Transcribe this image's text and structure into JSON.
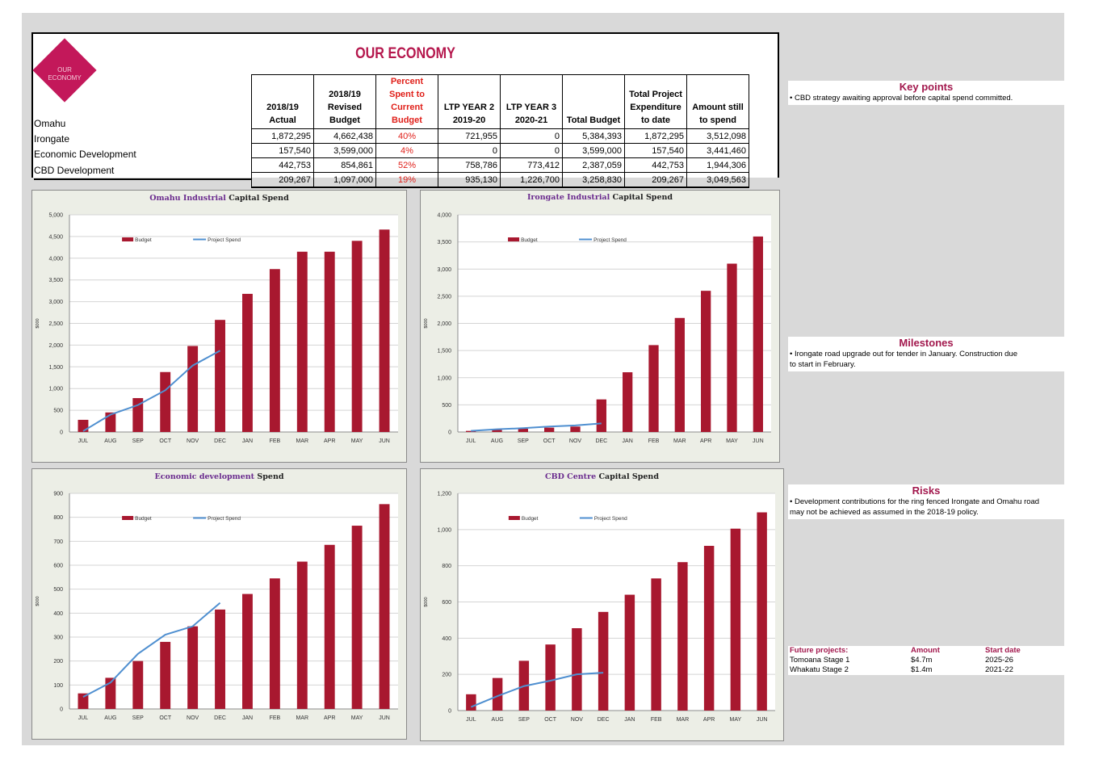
{
  "brand": {
    "logo_line1": "OUR",
    "logo_line2": "ECONOMY",
    "color": "#c3185a"
  },
  "header": {
    "title": "OUR ECONOMY"
  },
  "table": {
    "columns": [
      "2018/19 Actual",
      "2018/19 Revised Budget",
      "Percent Spent to Current Budget",
      "LTP YEAR 2 2019-20",
      "LTP YEAR 3 2020-21",
      "Total Budget",
      "Total Project Expenditure to date",
      "Amount still to spend"
    ],
    "rows": [
      {
        "label": "Omahu",
        "cells": [
          "1,872,295",
          "4,662,438",
          "40%",
          "721,955",
          "0",
          "5,384,393",
          "1,872,295",
          "3,512,098"
        ]
      },
      {
        "label": "Irongate",
        "cells": [
          "157,540",
          "3,599,000",
          "4%",
          "0",
          "0",
          "3,599,000",
          "157,540",
          "3,441,460"
        ]
      },
      {
        "label": "Economic Development",
        "cells": [
          "442,753",
          "854,861",
          "52%",
          "758,786",
          "773,412",
          "2,387,059",
          "442,753",
          "1,944,306"
        ]
      },
      {
        "label": "CBD Development",
        "cells": [
          "209,267",
          "1,097,000",
          "19%",
          "935,130",
          "1,226,700",
          "3,258,830",
          "209,267",
          "3,049,563"
        ]
      }
    ]
  },
  "colors": {
    "budget": "#a8182f",
    "spend": "#4f8fd0",
    "accent": "#a2184d",
    "percent": "#e0201a"
  },
  "chart_data": [
    {
      "type": "bar",
      "title_highlight": "Omahu Industrial",
      "title_rest": "Capital Spend",
      "ylabel": "$000",
      "ylim": [
        0,
        5000
      ],
      "ystep": 500,
      "categories": [
        "JUL",
        "AUG",
        "SEP",
        "OCT",
        "NOV",
        "DEC",
        "JAN",
        "FEB",
        "MAR",
        "APR",
        "MAY",
        "JUN"
      ],
      "series": [
        {
          "name": "Budget",
          "type": "bar",
          "values": [
            280,
            450,
            780,
            1380,
            1980,
            2580,
            3180,
            3750,
            4150,
            4150,
            4400,
            4660
          ]
        },
        {
          "name": "Project Spend",
          "type": "line",
          "values": [
            20,
            400,
            620,
            960,
            1530,
            1872,
            null,
            null,
            null,
            null,
            null,
            null
          ]
        }
      ],
      "grid": true,
      "legend": "top-left"
    },
    {
      "type": "bar",
      "title_highlight": "Irongate Industrial",
      "title_rest": "Capital Spend",
      "ylabel": "$000",
      "ylim": [
        0,
        4000
      ],
      "ystep": 500,
      "categories": [
        "JUL",
        "AUG",
        "SEP",
        "OCT",
        "NOV",
        "DEC",
        "JAN",
        "FEB",
        "MAR",
        "APR",
        "MAY",
        "JUN"
      ],
      "series": [
        {
          "name": "Budget",
          "type": "bar",
          "values": [
            20,
            40,
            60,
            80,
            100,
            600,
            1100,
            1600,
            2100,
            2600,
            3100,
            3600
          ]
        },
        {
          "name": "Project Spend",
          "type": "line",
          "values": [
            20,
            50,
            70,
            100,
            120,
            158,
            null,
            null,
            null,
            null,
            null,
            null
          ]
        }
      ],
      "grid": true,
      "legend": "top-left"
    },
    {
      "type": "bar",
      "title_highlight": "Economic development",
      "title_rest": "Spend",
      "ylabel": "$000",
      "ylim": [
        0,
        900
      ],
      "ystep": 100,
      "categories": [
        "JUL",
        "AUG",
        "SEP",
        "OCT",
        "NOV",
        "DEC",
        "JAN",
        "FEB",
        "MAR",
        "APR",
        "MAY",
        "JUN"
      ],
      "series": [
        {
          "name": "Budget",
          "type": "bar",
          "values": [
            65,
            130,
            200,
            280,
            345,
            415,
            480,
            545,
            615,
            685,
            765,
            855
          ]
        },
        {
          "name": "Project Spend",
          "type": "line",
          "values": [
            50,
            110,
            230,
            310,
            345,
            443,
            null,
            null,
            null,
            null,
            null,
            null
          ]
        }
      ],
      "grid": true,
      "legend": "top-left"
    },
    {
      "type": "bar",
      "title_highlight": "CBD Centre",
      "title_rest": "Capital Spend",
      "ylabel": "$000",
      "ylim": [
        0,
        1200
      ],
      "ystep": 200,
      "categories": [
        "JUL",
        "AUG",
        "SEP",
        "OCT",
        "NOV",
        "DEC",
        "JAN",
        "FEB",
        "MAR",
        "APR",
        "MAY",
        "JUN"
      ],
      "series": [
        {
          "name": "Budget",
          "type": "bar",
          "values": [
            90,
            180,
            275,
            365,
            455,
            545,
            640,
            730,
            820,
            910,
            1005,
            1095
          ]
        },
        {
          "name": "Project Spend",
          "type": "line",
          "values": [
            20,
            80,
            135,
            165,
            200,
            209,
            null,
            null,
            null,
            null,
            null,
            null
          ]
        }
      ],
      "grid": true,
      "legend": "top-left"
    }
  ],
  "key_points": {
    "heading": "Key points",
    "text": "• CBD strategy awaiting approval before capital spend committed."
  },
  "milestones": {
    "heading": "Milestones",
    "line1": "• Irongate road upgrade out for tender in January. Construction due",
    "line2": "to start in February."
  },
  "risks": {
    "heading": "Risks",
    "line1": "• Development contributions for the ring fenced Irongate and Omahu road",
    "line2": "may not be achieved as assumed in the 2018-19 policy."
  },
  "future": {
    "headers": [
      "Future projects:",
      "Amount",
      "Start date"
    ],
    "rows": [
      [
        "Tomoana Stage 1",
        "$4.7m",
        "2025-26"
      ],
      [
        "Whakatu Stage 2",
        "$1.4m",
        "2021-22"
      ]
    ]
  }
}
